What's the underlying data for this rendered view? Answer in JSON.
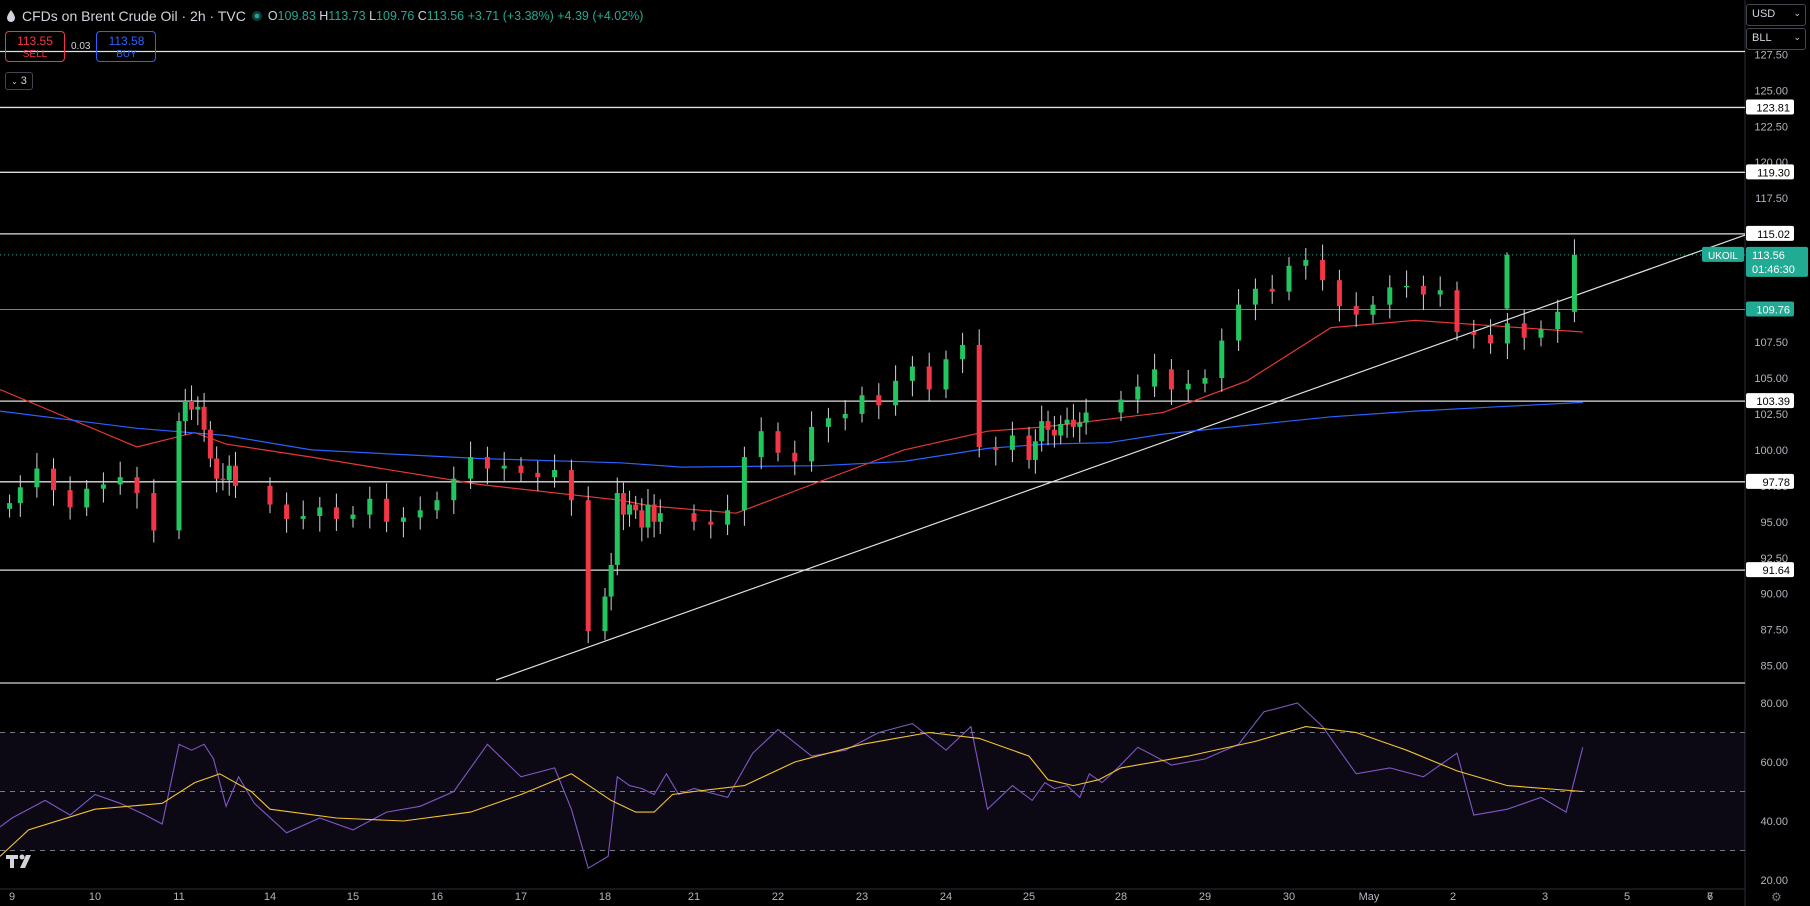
{
  "header": {
    "title": "CFDs on Brent Crude Oil · 2h · TVC",
    "open_k": "O",
    "open": "109.83",
    "high_k": "H",
    "high": "113.73",
    "low_k": "L",
    "low": "109.76",
    "close_k": "C",
    "close": "113.56",
    "change": "+3.71 (+3.38%)",
    "change2": "+4.39 (+4.02%)"
  },
  "trade": {
    "sell_price": "113.55",
    "sell_label": "SELL",
    "spread": "0.03",
    "buy_price": "113.58",
    "buy_label": "BUY"
  },
  "collapse": {
    "count": "3"
  },
  "controls": {
    "currency": "USD",
    "unit": "BLL"
  },
  "colors": {
    "up": "#26a69a",
    "upCandle": "#22c55e",
    "down": "#f23645",
    "ma_fast": "#e53935",
    "ma_slow": "#2962ff",
    "rsi": "#7e57c2",
    "rsi_ma": "#f4c430"
  },
  "chart_data": [
    {
      "type": "candlestick",
      "title": "CFDs on Brent Crude Oil · 2h · TVC",
      "ylim": [
        84,
        128.5
      ],
      "y_ticks": [
        "85.00",
        "87.50",
        "90.00",
        "92.50",
        "95.00",
        "97.50",
        "100.00",
        "102.50",
        "105.00",
        "107.50",
        "110.00",
        "112.50",
        "115.00",
        "117.50",
        "120.00",
        "122.50",
        "125.00",
        "127.50"
      ],
      "x_ticks": [
        "9",
        "10",
        "11",
        "14",
        "15",
        "16",
        "17",
        "18",
        "21",
        "22",
        "23",
        "24",
        "25",
        "28",
        "29",
        "30",
        "May",
        "2",
        "3",
        "5",
        "6",
        "7"
      ],
      "levels": [
        127.7,
        123.81,
        119.3,
        115.02,
        103.39,
        97.78,
        91.64
      ],
      "level_labels": [
        "123.81",
        "119.30",
        "115.02",
        "103.39",
        "97.78",
        "91.64"
      ],
      "open_level": 109.76,
      "open_level_label": "109.76",
      "last_price": 113.56,
      "last_price_label": "113.56",
      "symbol": "UKOIL",
      "countdown": "01:46:30",
      "trendline": {
        "from": [
          17.8,
          84.0
        ],
        "to": [
          22.6,
          111.3
        ]
      },
      "close_path": [
        [
          8.9,
          96.3
        ],
        [
          9.1,
          97.4
        ],
        [
          9.3,
          98.7
        ],
        [
          9.5,
          97.2
        ],
        [
          9.7,
          96.0
        ],
        [
          9.9,
          97.3
        ],
        [
          10.1,
          97.6
        ],
        [
          10.3,
          98.1
        ],
        [
          10.5,
          97.0
        ],
        [
          10.7,
          94.4
        ],
        [
          11.0,
          102.0
        ],
        [
          11.2,
          103.4
        ],
        [
          11.4,
          102.8
        ],
        [
          11.6,
          103.0
        ],
        [
          11.8,
          101.4
        ],
        [
          12.0,
          99.4
        ],
        [
          12.2,
          98.0
        ],
        [
          12.4,
          97.9
        ],
        [
          12.6,
          98.9
        ],
        [
          12.8,
          97.5
        ],
        [
          14.0,
          96.2
        ],
        [
          14.2,
          95.2
        ],
        [
          14.4,
          95.4
        ],
        [
          14.6,
          96.0
        ],
        [
          14.8,
          95.2
        ],
        [
          15.0,
          95.5
        ],
        [
          15.2,
          96.6
        ],
        [
          15.4,
          95.0
        ],
        [
          15.6,
          95.3
        ],
        [
          15.8,
          95.8
        ],
        [
          16.0,
          96.5
        ],
        [
          16.2,
          98.0
        ],
        [
          16.4,
          99.5
        ],
        [
          16.6,
          98.7
        ],
        [
          16.8,
          98.9
        ],
        [
          17.0,
          98.4
        ],
        [
          17.2,
          98.1
        ],
        [
          17.4,
          98.6
        ],
        [
          17.6,
          96.5
        ],
        [
          17.8,
          87.4
        ],
        [
          18.0,
          89.8
        ],
        [
          18.2,
          92.0
        ],
        [
          18.4,
          97.0
        ],
        [
          18.6,
          95.5
        ],
        [
          18.8,
          96.2
        ],
        [
          19.0,
          95.8
        ],
        [
          19.2,
          94.6
        ],
        [
          19.4,
          96.2
        ],
        [
          19.6,
          95.0
        ],
        [
          19.8,
          95.6
        ],
        [
          21.0,
          95.0
        ],
        [
          21.2,
          94.8
        ],
        [
          21.4,
          95.8
        ],
        [
          21.6,
          99.5
        ],
        [
          21.8,
          101.3
        ],
        [
          22.0,
          99.8
        ],
        [
          22.2,
          99.2
        ],
        [
          22.4,
          101.6
        ],
        [
          22.6,
          102.2
        ],
        [
          22.8,
          102.5
        ],
        [
          23.0,
          103.8
        ],
        [
          23.2,
          103.1
        ],
        [
          23.4,
          104.8
        ],
        [
          23.6,
          105.8
        ],
        [
          23.8,
          104.2
        ],
        [
          24.0,
          106.3
        ],
        [
          24.2,
          107.3
        ],
        [
          24.4,
          100.2
        ],
        [
          24.6,
          100.0
        ],
        [
          24.8,
          101.0
        ],
        [
          25.0,
          99.3
        ],
        [
          25.2,
          100.6
        ],
        [
          25.4,
          102.0
        ],
        [
          25.6,
          101.4
        ],
        [
          25.8,
          101.0
        ],
        [
          26.0,
          101.8
        ],
        [
          26.2,
          102.1
        ],
        [
          26.4,
          101.6
        ],
        [
          26.6,
          101.9
        ],
        [
          26.8,
          102.6
        ],
        [
          28.0,
          103.5
        ],
        [
          28.2,
          104.4
        ],
        [
          28.4,
          105.6
        ],
        [
          28.6,
          104.2
        ],
        [
          28.8,
          104.6
        ],
        [
          29.0,
          105.0
        ],
        [
          29.2,
          107.6
        ],
        [
          29.4,
          110.1
        ],
        [
          29.6,
          111.2
        ],
        [
          29.8,
          111.0
        ],
        [
          30.0,
          112.8
        ],
        [
          30.2,
          113.2
        ],
        [
          30.4,
          111.8
        ],
        [
          30.6,
          110.0
        ],
        [
          30.8,
          109.4
        ],
        [
          31.0,
          110.1
        ],
        [
          31.2,
          111.3
        ],
        [
          31.4,
          111.4
        ],
        [
          31.6,
          110.8
        ],
        [
          31.8,
          111.1
        ],
        [
          32.0,
          108.2
        ],
        [
          32.2,
          108.0
        ],
        [
          32.4,
          107.4
        ],
        [
          32.6,
          108.8
        ],
        [
          32.8,
          107.8
        ],
        [
          33.0,
          108.4
        ],
        [
          33.2,
          109.6
        ],
        [
          33.4,
          113.56
        ]
      ],
      "candles": [
        {
          "x": 34.4,
          "o": 109.83,
          "h": 113.73,
          "l": 109.76,
          "c": 113.56
        }
      ],
      "series": [
        {
          "name": "",
          "color": "#e53935",
          "points": [
            [
              8.5,
              104.2
            ],
            [
              10.5,
              100.2
            ],
            [
              11.5,
              101.2
            ],
            [
              12.5,
              100.4
            ],
            [
              14.5,
              99.5
            ],
            [
              16.5,
              97.6
            ],
            [
              18.5,
              96.5
            ],
            [
              19.5,
              96.1
            ],
            [
              21.5,
              95.6
            ],
            [
              22.5,
              97.8
            ],
            [
              23.5,
              100.0
            ],
            [
              24.5,
              101.3
            ],
            [
              25.5,
              101.6
            ],
            [
              28.5,
              102.6
            ],
            [
              29.5,
              104.8
            ],
            [
              30.5,
              108.5
            ],
            [
              31.5,
              109.0
            ],
            [
              32.5,
              108.6
            ],
            [
              33.5,
              108.2
            ]
          ]
        },
        {
          "name": "",
          "color": "#2962ff",
          "points": [
            [
              8.5,
              102.7
            ],
            [
              10.5,
              101.5
            ],
            [
              12.5,
              101.0
            ],
            [
              14.5,
              100.0
            ],
            [
              16.5,
              99.4
            ],
            [
              18.5,
              99.1
            ],
            [
              20.5,
              98.8
            ],
            [
              22.5,
              98.9
            ],
            [
              23.5,
              99.2
            ],
            [
              24.5,
              100.1
            ],
            [
              25.5,
              100.4
            ],
            [
              27.5,
              100.5
            ],
            [
              28.5,
              101.1
            ],
            [
              29.5,
              101.7
            ],
            [
              30.5,
              102.3
            ],
            [
              31.5,
              102.7
            ],
            [
              32.5,
              103.0
            ],
            [
              33.5,
              103.3
            ]
          ]
        }
      ]
    },
    {
      "type": "line",
      "ylim": [
        18,
        84
      ],
      "y_ticks": [
        "20.00",
        "40.00",
        "60.00",
        "80.00"
      ],
      "bands": [
        70,
        50,
        30
      ],
      "series": [
        {
          "name": "",
          "color": "#7e57c2",
          "points": [
            [
              8.5,
              38
            ],
            [
              9.0,
              41
            ],
            [
              9.4,
              47
            ],
            [
              9.7,
              42
            ],
            [
              10.0,
              49
            ],
            [
              10.3,
              46
            ],
            [
              10.6,
              42
            ],
            [
              10.8,
              39
            ],
            [
              11.0,
              66
            ],
            [
              11.4,
              64
            ],
            [
              11.8,
              66
            ],
            [
              12.1,
              61
            ],
            [
              12.5,
              45
            ],
            [
              12.9,
              55
            ],
            [
              13.4,
              46
            ],
            [
              14.2,
              36
            ],
            [
              14.6,
              41
            ],
            [
              15.0,
              37
            ],
            [
              15.4,
              43
            ],
            [
              15.8,
              45
            ],
            [
              16.2,
              50
            ],
            [
              16.6,
              66
            ],
            [
              17.0,
              55
            ],
            [
              17.4,
              58
            ],
            [
              17.6,
              44
            ],
            [
              17.8,
              24
            ],
            [
              18.1,
              28
            ],
            [
              18.4,
              55
            ],
            [
              18.8,
              52
            ],
            [
              19.2,
              51
            ],
            [
              19.6,
              49
            ],
            [
              20.0,
              56
            ],
            [
              20.4,
              49
            ],
            [
              21.0,
              51
            ],
            [
              21.4,
              48
            ],
            [
              21.7,
              63
            ],
            [
              22.0,
              71
            ],
            [
              22.4,
              62
            ],
            [
              22.8,
              64
            ],
            [
              23.2,
              70
            ],
            [
              23.6,
              73
            ],
            [
              24.0,
              64
            ],
            [
              24.3,
              72
            ],
            [
              24.5,
              44
            ],
            [
              24.8,
              52
            ],
            [
              25.1,
              47
            ],
            [
              25.5,
              53
            ],
            [
              25.8,
              51
            ],
            [
              26.2,
              52
            ],
            [
              26.6,
              48
            ],
            [
              26.9,
              56
            ],
            [
              27.3,
              53
            ],
            [
              27.8,
              58
            ],
            [
              28.2,
              65
            ],
            [
              28.6,
              59
            ],
            [
              29.0,
              61
            ],
            [
              29.4,
              66
            ],
            [
              29.7,
              77
            ],
            [
              30.1,
              80
            ],
            [
              30.4,
              72
            ],
            [
              30.8,
              56
            ],
            [
              31.2,
              58
            ],
            [
              31.6,
              55
            ],
            [
              32.0,
              63
            ],
            [
              32.2,
              42
            ],
            [
              32.6,
              44
            ],
            [
              33.0,
              48
            ],
            [
              33.3,
              43
            ],
            [
              33.5,
              65
            ]
          ]
        },
        {
          "name": "",
          "color": "#f4c430",
          "points": [
            [
              8.5,
              28
            ],
            [
              9.2,
              37
            ],
            [
              10.0,
              44
            ],
            [
              10.8,
              46
            ],
            [
              11.5,
              53
            ],
            [
              12.3,
              56
            ],
            [
              13.3,
              50
            ],
            [
              14.0,
              44
            ],
            [
              14.8,
              41
            ],
            [
              15.6,
              40
            ],
            [
              16.4,
              43
            ],
            [
              17.0,
              49
            ],
            [
              17.6,
              56
            ],
            [
              18.2,
              47
            ],
            [
              19.0,
              43
            ],
            [
              19.6,
              43
            ],
            [
              20.2,
              49
            ],
            [
              21.0,
              50
            ],
            [
              21.6,
              52
            ],
            [
              22.2,
              60
            ],
            [
              23.0,
              66
            ],
            [
              23.8,
              70
            ],
            [
              24.4,
              68
            ],
            [
              25.0,
              62
            ],
            [
              25.6,
              54
            ],
            [
              26.4,
              52
            ],
            [
              27.2,
              54
            ],
            [
              28.0,
              58
            ],
            [
              28.8,
              62
            ],
            [
              29.6,
              67
            ],
            [
              30.2,
              72
            ],
            [
              30.8,
              70
            ],
            [
              31.4,
              64
            ],
            [
              32.0,
              57
            ],
            [
              32.6,
              52
            ],
            [
              33.5,
              50
            ]
          ]
        }
      ]
    }
  ]
}
